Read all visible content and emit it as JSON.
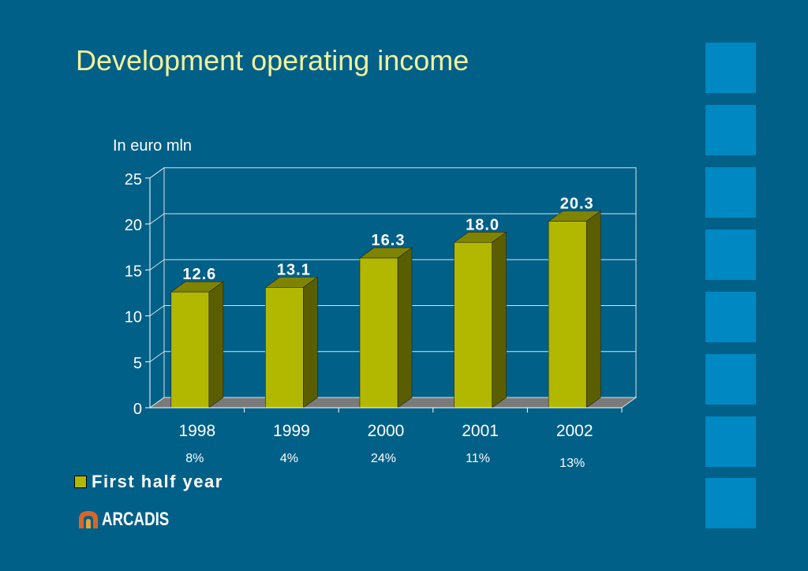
{
  "title": "Development operating income",
  "subtitle": "In euro mln",
  "colors": {
    "background": "#006088",
    "title": "#f2f29a",
    "bar_front": "#b2b800",
    "bar_side": "#5a5e00",
    "bar_top": "#7f8400",
    "side_squares": "#0088c2"
  },
  "chart_data": {
    "type": "bar",
    "categories": [
      "1998",
      "1999",
      "2000",
      "2001",
      "2002"
    ],
    "series": [
      {
        "name": "First half year",
        "values": [
          12.6,
          13.1,
          16.3,
          18.0,
          20.3
        ]
      }
    ],
    "data_labels": [
      "12.6",
      "13.1",
      "16.3",
      "18.0",
      "20.3"
    ],
    "growth_labels": [
      "8%",
      "4%",
      "24%",
      "11%",
      "13%"
    ],
    "ylim": [
      0,
      25
    ],
    "yticks": [
      "0",
      "5",
      "10",
      "15",
      "20",
      "25"
    ],
    "grid": true,
    "legend_position": "bottom-left",
    "xlabel": "",
    "ylabel": ""
  },
  "legend": {
    "label": "First half year"
  },
  "logo": {
    "text": "ARCADIS",
    "icon": "arcadis-logo-icon"
  }
}
